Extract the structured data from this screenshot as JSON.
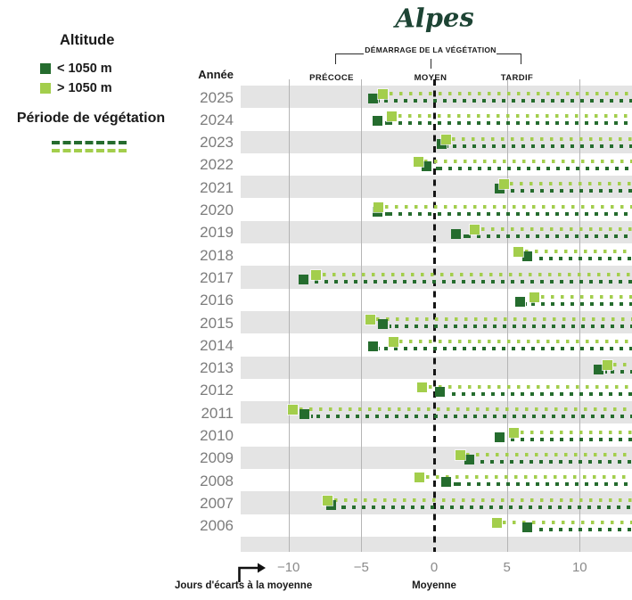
{
  "title": "Alpes",
  "legend": {
    "altitude_title": "Altitude",
    "items": [
      {
        "name": "below-1050",
        "label": "< 1050 m",
        "color": "#256c2e"
      },
      {
        "name": "above-1050",
        "label": "> 1050 m",
        "color": "#a3ce4c"
      }
    ],
    "period_title": "Période de végétation"
  },
  "header": {
    "bracket_label": "DÉMARRAGE DE LA VÉGÉTATION",
    "zones": [
      "PRÉCOCE",
      "MOYEN",
      "TARDIF"
    ]
  },
  "axis": {
    "col_header": "Année",
    "tick_labels": [
      "−10",
      "−5",
      "0",
      "5",
      "10"
    ],
    "xlabel": "Jours d'écarts à la moyenne",
    "zero_label": "Moyenne"
  },
  "colors": {
    "dark_green": "#256c2e",
    "light_green": "#a3ce4c",
    "title_green": "#1d4434",
    "stripe_gray": "#e4e4e4",
    "grid_gray": "#b5b5b5",
    "year_text": "#7c7c7c",
    "tick_text": "#8a8a8a"
  },
  "chart_data": {
    "type": "scatter",
    "title": "Alpes",
    "xlabel": "Jours d'écarts à la moyenne",
    "ylabel": "Année",
    "xlim": [
      -13.3,
      13.6
    ],
    "x_ticks": [
      -10,
      -5,
      0,
      5,
      10
    ],
    "zero_line": 0,
    "grid": "vertical",
    "legend_position": "top-left",
    "series_meta": [
      {
        "key": "below_1050",
        "name": "< 1050 m",
        "color": "#256c2e"
      },
      {
        "key": "above_1050",
        "name": "> 1050 m",
        "color": "#a3ce4c"
      }
    ],
    "unit": "jours d'écart à la moyenne du démarrage de la végétation",
    "rows": [
      {
        "year": 2025,
        "below_1050": -4.2,
        "above_1050": -3.5
      },
      {
        "year": 2024,
        "below_1050": -3.9,
        "above_1050": -2.9
      },
      {
        "year": 2023,
        "below_1050": 0.5,
        "above_1050": 0.8
      },
      {
        "year": 2022,
        "below_1050": -0.5,
        "above_1050": -1.1
      },
      {
        "year": 2021,
        "below_1050": 4.5,
        "above_1050": 4.8
      },
      {
        "year": 2020,
        "below_1050": -3.9,
        "above_1050": -3.8
      },
      {
        "year": 2019,
        "below_1050": 1.5,
        "above_1050": 2.8
      },
      {
        "year": 2018,
        "below_1050": 6.4,
        "above_1050": 5.8
      },
      {
        "year": 2017,
        "below_1050": -9.0,
        "above_1050": -8.1
      },
      {
        "year": 2016,
        "below_1050": 5.9,
        "above_1050": 6.9
      },
      {
        "year": 2015,
        "below_1050": -3.5,
        "above_1050": -4.4
      },
      {
        "year": 2014,
        "below_1050": -4.2,
        "above_1050": -2.8
      },
      {
        "year": 2013,
        "below_1050": 11.3,
        "above_1050": 11.9
      },
      {
        "year": 2012,
        "below_1050": 0.4,
        "above_1050": -0.8
      },
      {
        "year": 2011,
        "below_1050": -8.9,
        "above_1050": -9.7
      },
      {
        "year": 2010,
        "below_1050": 4.5,
        "above_1050": 5.5
      },
      {
        "year": 2009,
        "below_1050": 2.4,
        "above_1050": 1.8
      },
      {
        "year": 2008,
        "below_1050": 0.8,
        "above_1050": -1.0
      },
      {
        "year": 2007,
        "below_1050": -7.1,
        "above_1050": -7.3
      },
      {
        "year": 2006,
        "below_1050": 6.4,
        "above_1050": 4.3
      }
    ]
  }
}
